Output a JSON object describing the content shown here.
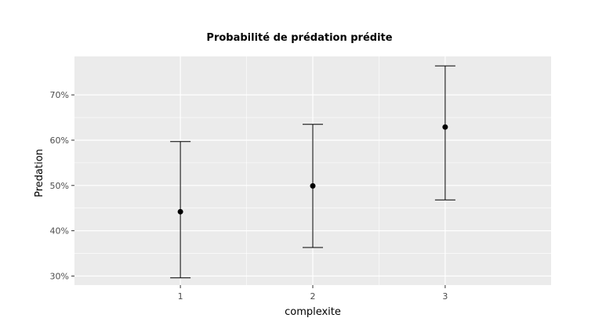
{
  "chart_data": {
    "type": "scatter",
    "title": "Probabilité de prédation prédite",
    "xlabel": "complexite",
    "ylabel": "Predation",
    "categories": [
      "1",
      "2",
      "3"
    ],
    "points": [
      {
        "x": "1",
        "y": 44.2,
        "ymin": 29.6,
        "ymax": 59.7
      },
      {
        "x": "2",
        "y": 49.9,
        "ymin": 36.3,
        "ymax": 63.5
      },
      {
        "x": "3",
        "y": 62.9,
        "ymin": 46.8,
        "ymax": 76.4
      }
    ],
    "yticks": [
      30,
      40,
      50,
      60,
      70
    ],
    "ytick_labels": [
      "30%",
      "40%",
      "50%",
      "60%",
      "70%"
    ],
    "ylim": [
      28,
      78.5
    ],
    "grid": true,
    "point_color": "#000000",
    "panel_color": "#ebebeb",
    "grid_color": "#ffffff"
  }
}
